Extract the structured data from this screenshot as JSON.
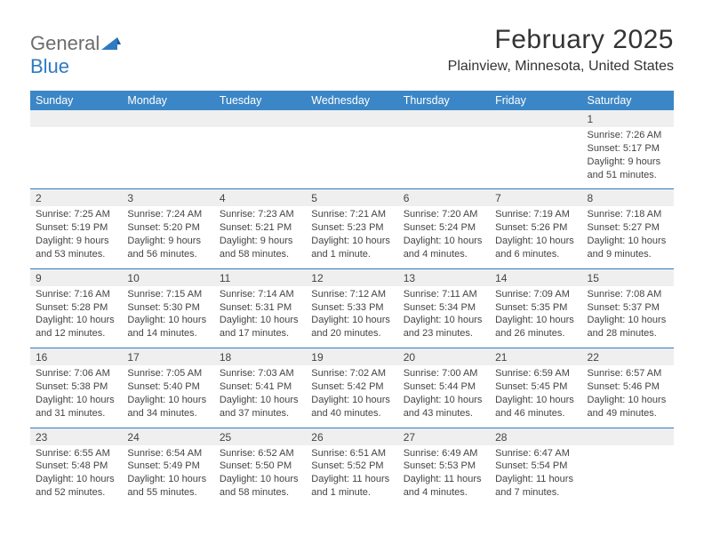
{
  "logo": {
    "text1": "General",
    "text2": "Blue"
  },
  "title": "February 2025",
  "location": "Plainview, Minnesota, United States",
  "colors": {
    "header_bg": "#3b86c6",
    "header_text": "#ffffff",
    "accent_line": "#2f7ac0",
    "daynum_bg": "#efefef",
    "body_text": "#444444",
    "logo_gray": "#6c6c6c",
    "logo_blue": "#2f7ac0"
  },
  "day_names": [
    "Sunday",
    "Monday",
    "Tuesday",
    "Wednesday",
    "Thursday",
    "Friday",
    "Saturday"
  ],
  "weeks": [
    [
      null,
      null,
      null,
      null,
      null,
      null,
      {
        "n": "1",
        "sunrise": "Sunrise: 7:26 AM",
        "sunset": "Sunset: 5:17 PM",
        "daylight": "Daylight: 9 hours and 51 minutes."
      }
    ],
    [
      {
        "n": "2",
        "sunrise": "Sunrise: 7:25 AM",
        "sunset": "Sunset: 5:19 PM",
        "daylight": "Daylight: 9 hours and 53 minutes."
      },
      {
        "n": "3",
        "sunrise": "Sunrise: 7:24 AM",
        "sunset": "Sunset: 5:20 PM",
        "daylight": "Daylight: 9 hours and 56 minutes."
      },
      {
        "n": "4",
        "sunrise": "Sunrise: 7:23 AM",
        "sunset": "Sunset: 5:21 PM",
        "daylight": "Daylight: 9 hours and 58 minutes."
      },
      {
        "n": "5",
        "sunrise": "Sunrise: 7:21 AM",
        "sunset": "Sunset: 5:23 PM",
        "daylight": "Daylight: 10 hours and 1 minute."
      },
      {
        "n": "6",
        "sunrise": "Sunrise: 7:20 AM",
        "sunset": "Sunset: 5:24 PM",
        "daylight": "Daylight: 10 hours and 4 minutes."
      },
      {
        "n": "7",
        "sunrise": "Sunrise: 7:19 AM",
        "sunset": "Sunset: 5:26 PM",
        "daylight": "Daylight: 10 hours and 6 minutes."
      },
      {
        "n": "8",
        "sunrise": "Sunrise: 7:18 AM",
        "sunset": "Sunset: 5:27 PM",
        "daylight": "Daylight: 10 hours and 9 minutes."
      }
    ],
    [
      {
        "n": "9",
        "sunrise": "Sunrise: 7:16 AM",
        "sunset": "Sunset: 5:28 PM",
        "daylight": "Daylight: 10 hours and 12 minutes."
      },
      {
        "n": "10",
        "sunrise": "Sunrise: 7:15 AM",
        "sunset": "Sunset: 5:30 PM",
        "daylight": "Daylight: 10 hours and 14 minutes."
      },
      {
        "n": "11",
        "sunrise": "Sunrise: 7:14 AM",
        "sunset": "Sunset: 5:31 PM",
        "daylight": "Daylight: 10 hours and 17 minutes."
      },
      {
        "n": "12",
        "sunrise": "Sunrise: 7:12 AM",
        "sunset": "Sunset: 5:33 PM",
        "daylight": "Daylight: 10 hours and 20 minutes."
      },
      {
        "n": "13",
        "sunrise": "Sunrise: 7:11 AM",
        "sunset": "Sunset: 5:34 PM",
        "daylight": "Daylight: 10 hours and 23 minutes."
      },
      {
        "n": "14",
        "sunrise": "Sunrise: 7:09 AM",
        "sunset": "Sunset: 5:35 PM",
        "daylight": "Daylight: 10 hours and 26 minutes."
      },
      {
        "n": "15",
        "sunrise": "Sunrise: 7:08 AM",
        "sunset": "Sunset: 5:37 PM",
        "daylight": "Daylight: 10 hours and 28 minutes."
      }
    ],
    [
      {
        "n": "16",
        "sunrise": "Sunrise: 7:06 AM",
        "sunset": "Sunset: 5:38 PM",
        "daylight": "Daylight: 10 hours and 31 minutes."
      },
      {
        "n": "17",
        "sunrise": "Sunrise: 7:05 AM",
        "sunset": "Sunset: 5:40 PM",
        "daylight": "Daylight: 10 hours and 34 minutes."
      },
      {
        "n": "18",
        "sunrise": "Sunrise: 7:03 AM",
        "sunset": "Sunset: 5:41 PM",
        "daylight": "Daylight: 10 hours and 37 minutes."
      },
      {
        "n": "19",
        "sunrise": "Sunrise: 7:02 AM",
        "sunset": "Sunset: 5:42 PM",
        "daylight": "Daylight: 10 hours and 40 minutes."
      },
      {
        "n": "20",
        "sunrise": "Sunrise: 7:00 AM",
        "sunset": "Sunset: 5:44 PM",
        "daylight": "Daylight: 10 hours and 43 minutes."
      },
      {
        "n": "21",
        "sunrise": "Sunrise: 6:59 AM",
        "sunset": "Sunset: 5:45 PM",
        "daylight": "Daylight: 10 hours and 46 minutes."
      },
      {
        "n": "22",
        "sunrise": "Sunrise: 6:57 AM",
        "sunset": "Sunset: 5:46 PM",
        "daylight": "Daylight: 10 hours and 49 minutes."
      }
    ],
    [
      {
        "n": "23",
        "sunrise": "Sunrise: 6:55 AM",
        "sunset": "Sunset: 5:48 PM",
        "daylight": "Daylight: 10 hours and 52 minutes."
      },
      {
        "n": "24",
        "sunrise": "Sunrise: 6:54 AM",
        "sunset": "Sunset: 5:49 PM",
        "daylight": "Daylight: 10 hours and 55 minutes."
      },
      {
        "n": "25",
        "sunrise": "Sunrise: 6:52 AM",
        "sunset": "Sunset: 5:50 PM",
        "daylight": "Daylight: 10 hours and 58 minutes."
      },
      {
        "n": "26",
        "sunrise": "Sunrise: 6:51 AM",
        "sunset": "Sunset: 5:52 PM",
        "daylight": "Daylight: 11 hours and 1 minute."
      },
      {
        "n": "27",
        "sunrise": "Sunrise: 6:49 AM",
        "sunset": "Sunset: 5:53 PM",
        "daylight": "Daylight: 11 hours and 4 minutes."
      },
      {
        "n": "28",
        "sunrise": "Sunrise: 6:47 AM",
        "sunset": "Sunset: 5:54 PM",
        "daylight": "Daylight: 11 hours and 7 minutes."
      },
      null
    ]
  ]
}
